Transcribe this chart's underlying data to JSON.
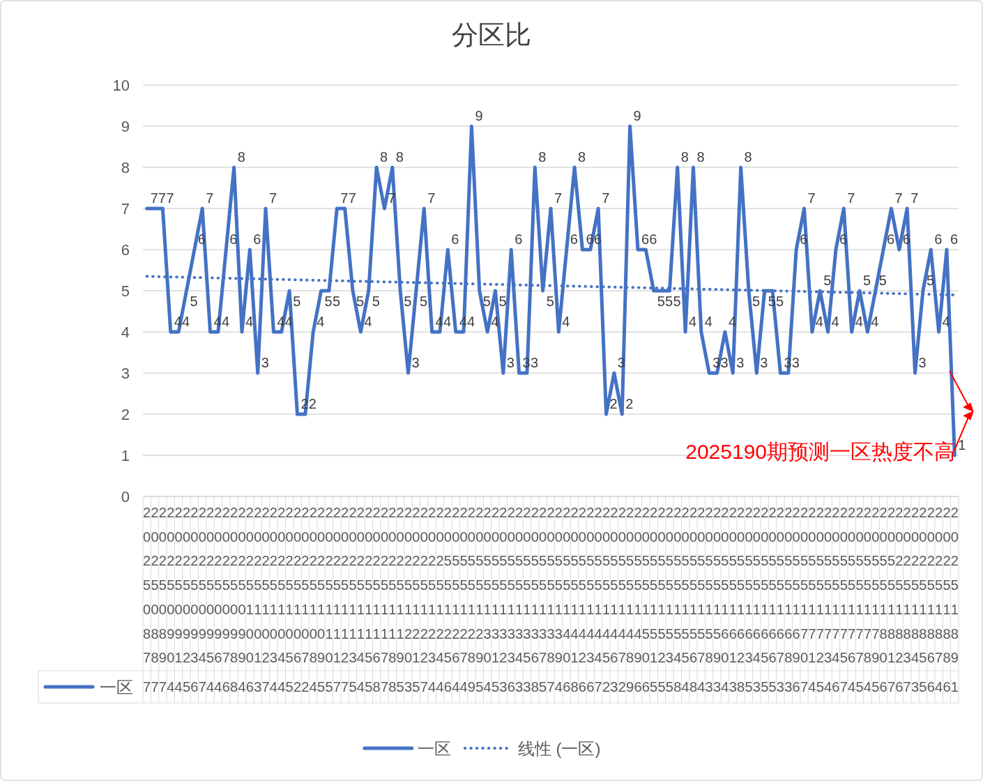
{
  "chart_data": {
    "type": "line",
    "title": "分区比",
    "categories": [
      "2025087",
      "2025088",
      "2025089",
      "2025090",
      "2025091",
      "2025092",
      "2025093",
      "2025094",
      "2025095",
      "2025096",
      "2025097",
      "2025098",
      "2025099",
      "2025100",
      "2025101",
      "2025102",
      "2025103",
      "2025104",
      "2025105",
      "2025106",
      "2025107",
      "2025108",
      "2025109",
      "2025110",
      "2025111",
      "2025112",
      "2025113",
      "2025114",
      "2025115",
      "2025116",
      "2025117",
      "2025118",
      "2025119",
      "2025120",
      "2025121",
      "2025122",
      "2025123",
      "2025124",
      "2055125",
      "2055126",
      "2055127",
      "2055128",
      "2055129",
      "2055130",
      "2055131",
      "2055132",
      "2055133",
      "2055134",
      "2055135",
      "2055136",
      "2055137",
      "2055138",
      "2055139",
      "2055140",
      "2055141",
      "2055142",
      "2055143",
      "2055144",
      "2055145",
      "2055146",
      "2055147",
      "2055148",
      "2055149",
      "2055150",
      "2055151",
      "2055152",
      "2055153",
      "2055154",
      "2055155",
      "2055156",
      "2055157",
      "2055158",
      "2055159",
      "2055160",
      "2055161",
      "2055162",
      "2055163",
      "2055164",
      "2055165",
      "2055166",
      "2055167",
      "2055168",
      "2055169",
      "2055170",
      "2055171",
      "2055172",
      "2055173",
      "2055174",
      "2055175",
      "2055176",
      "2055177",
      "2055178",
      "2055179",
      "2055180",
      "2055181",
      "2025182",
      "2025183",
      "2025184",
      "2025185",
      "2025186",
      "2025187",
      "2025188",
      "2025189"
    ],
    "series": [
      {
        "name": "一区",
        "color": "#4472c4",
        "line_style": "solid",
        "values": [
          7,
          7,
          7,
          4,
          4,
          5,
          6,
          7,
          4,
          4,
          6,
          8,
          4,
          6,
          3,
          7,
          4,
          4,
          5,
          2,
          2,
          4,
          5,
          5,
          7,
          7,
          5,
          4,
          5,
          8,
          7,
          8,
          5,
          3,
          5,
          7,
          4,
          4,
          6,
          4,
          4,
          9,
          5,
          4,
          5,
          3,
          6,
          3,
          3,
          8,
          5,
          7,
          4,
          6,
          8,
          6,
          6,
          7,
          2,
          3,
          2,
          9,
          6,
          6,
          5,
          5,
          5,
          8,
          4,
          8,
          4,
          3,
          3,
          4,
          3,
          8,
          5,
          3,
          5,
          5,
          3,
          3,
          6,
          7,
          4,
          5,
          4,
          6,
          7,
          4,
          5,
          4,
          5,
          6,
          7,
          6,
          7,
          3,
          5,
          6,
          4,
          6,
          1
        ],
        "value_labels": [
          "7",
          "7",
          "7",
          "4",
          "4",
          "5",
          "6",
          "7",
          "4",
          "4",
          "6",
          "8",
          "4",
          "6",
          "3",
          "7",
          "4",
          "4",
          "5",
          "2",
          "2",
          "4",
          "5",
          "5",
          "7",
          "7",
          "5",
          "4",
          "5",
          "8",
          "7",
          "8",
          "5",
          "3",
          "5",
          "7",
          "4",
          "4",
          "6",
          "4",
          "4",
          "9",
          "5",
          "4",
          "5",
          "3",
          "6",
          "3",
          "3",
          "8",
          "5",
          "7",
          "4",
          "6",
          "8",
          "6",
          "6",
          "7",
          "2",
          "3",
          "2",
          "9",
          "6",
          "6",
          "5",
          "5",
          "5",
          "8",
          "4",
          "8",
          "4",
          "3",
          "3",
          "4",
          "3",
          "8",
          "5",
          "3",
          "5",
          "5",
          "3",
          "3",
          "6",
          "7",
          "4",
          "5",
          "4",
          "6",
          "7",
          "4",
          "5",
          "4",
          "5",
          "6",
          "7",
          "6",
          "7",
          "3",
          "5",
          "6",
          "4",
          "6",
          "1"
        ]
      },
      {
        "name": "线性 (一区)",
        "type": "line",
        "color": "#4472c4",
        "line_style": "dotted",
        "x": [
          "2025087",
          "2025189"
        ],
        "values": [
          5.35,
          4.9
        ]
      }
    ],
    "ylim": [
      0,
      10
    ],
    "yticks": [
      0,
      1,
      2,
      3,
      4,
      5,
      6,
      7,
      8,
      9,
      10
    ],
    "grid": "y",
    "legend": "bottom",
    "annotations": [
      "2025190期预测一区热度不高"
    ]
  }
}
